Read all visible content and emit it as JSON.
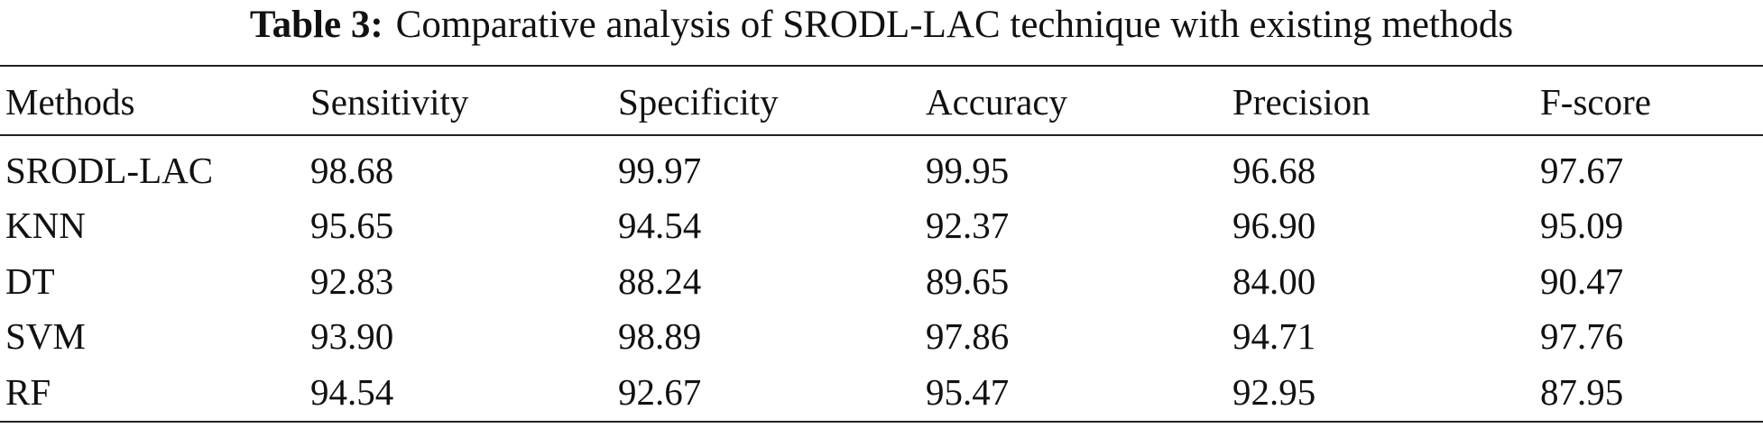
{
  "caption": {
    "label": "Table 3:",
    "text": "Comparative analysis of SRODL-LAC technique with existing methods"
  },
  "table": {
    "headers": [
      "Methods",
      "Sensitivity",
      "Specificity",
      "Accuracy",
      "Precision",
      "F-score"
    ],
    "rows": [
      [
        "SRODL-LAC",
        "98.68",
        "99.97",
        "99.95",
        "96.68",
        "97.67"
      ],
      [
        "KNN",
        "95.65",
        "94.54",
        "92.37",
        "96.90",
        "95.09"
      ],
      [
        "DT",
        "92.83",
        "88.24",
        "89.65",
        "84.00",
        "90.47"
      ],
      [
        "SVM",
        "93.90",
        "98.89",
        "97.86",
        "94.71",
        "97.76"
      ],
      [
        "RF",
        "94.54",
        "92.67",
        "95.47",
        "92.95",
        "87.95"
      ]
    ]
  }
}
